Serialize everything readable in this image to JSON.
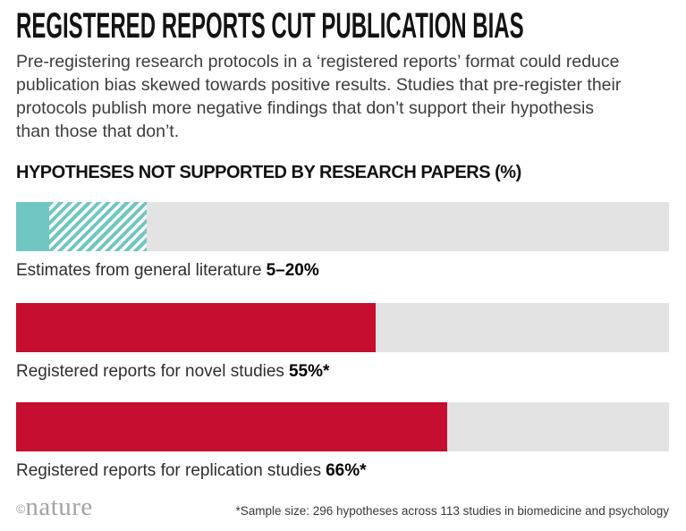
{
  "header": {
    "title": "REGISTERED REPORTS CUT PUBLICATION BIAS",
    "subtitle_lines": [
      "Pre-registering research protocols in a ‘registered reports’ format could reduce",
      "publication bias skewed towards positive results. Studies that pre-register their",
      "protocols publish more negative findings that don’t support their hypothesis",
      "than those that don’t."
    ]
  },
  "chart_data": {
    "type": "bar",
    "title": "HYPOTHESES NOT SUPPORTED BY RESEARCH PAPERS (%)",
    "xlabel": "",
    "ylabel": "",
    "xlim": [
      0,
      100
    ],
    "grid": false,
    "legend": "none",
    "orientation": "horizontal",
    "colors": {
      "teal": "#70c6c3",
      "red": "#c50e30",
      "track": "#e3e3e3"
    },
    "bars": [
      {
        "label": "Estimates from general literature",
        "value_label": "5–20%",
        "min": 5,
        "max": 20,
        "fill": "teal",
        "pattern": "solid-to-5-then-hatched-to-20"
      },
      {
        "label": "Registered reports for novel studies",
        "value_label": "55%*",
        "value": 55,
        "fill": "red",
        "pattern": "solid"
      },
      {
        "label": "Registered reports for replication studies",
        "value_label": "66%*",
        "value": 66,
        "fill": "red",
        "pattern": "solid"
      }
    ]
  },
  "footer": {
    "copyright_symbol": "©",
    "brand": "nature",
    "note": "*Sample size: 296 hypotheses across 113 studies in biomedicine and psychology"
  }
}
